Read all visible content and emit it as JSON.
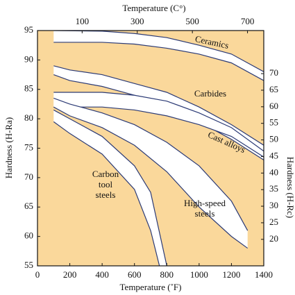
{
  "chart_data": {
    "type": "band",
    "x_label": "Temperature (˚F)",
    "x2_label": "Temperature (C°)",
    "y_label": "Hardness (H-Ra)",
    "y2_label": "Hardness (H-Rc)",
    "xlim": [
      0,
      1400
    ],
    "xticks": [
      0,
      200,
      400,
      600,
      800,
      1000,
      1200,
      1400
    ],
    "x2lim": [
      -62,
      759
    ],
    "x2ticks": [
      100,
      300,
      500,
      700
    ],
    "ylim": [
      55,
      95
    ],
    "yticks": [
      55,
      60,
      65,
      70,
      75,
      80,
      85,
      90,
      95
    ],
    "y2lim": [
      12,
      83
    ],
    "y2ticks": [
      20,
      25,
      30,
      35,
      40,
      45,
      50,
      55,
      60,
      65,
      70
    ],
    "color": "#2b3a75",
    "fill": "#ffffff",
    "background": "#fad89b",
    "bands": [
      {
        "name": "Ceramics",
        "x": [
          100,
          400,
          600,
          800,
          1000,
          1200,
          1400
        ],
        "upper": [
          95,
          94.9,
          94.5,
          93.8,
          92.5,
          91,
          88
        ],
        "lower": [
          93,
          93,
          92.7,
          92,
          91,
          89.5,
          86.5
        ]
      },
      {
        "name": "Carbides",
        "x": [
          100,
          200,
          400,
          600,
          800,
          1000,
          1200,
          1400
        ],
        "upper": [
          89,
          88.3,
          87.5,
          86,
          84.5,
          82,
          79,
          75.5
        ],
        "lower": [
          87.5,
          86.5,
          85.5,
          84,
          82,
          79.5,
          76.5,
          73
        ]
      },
      {
        "name": "Cast alloys",
        "x": [
          100,
          400,
          600,
          800,
          1000,
          1200,
          1400
        ],
        "upper": [
          84.5,
          84.5,
          84,
          83,
          81,
          78.5,
          74.5
        ],
        "lower": [
          82,
          82,
          81.5,
          80.5,
          79,
          77,
          73.5
        ]
      },
      {
        "name": "High-speed steels",
        "x": [
          100,
          200,
          400,
          600,
          800,
          1000,
          1200,
          1300
        ],
        "upper": [
          83.5,
          82.5,
          81,
          79,
          76,
          72,
          66,
          61
        ],
        "lower": [
          82,
          80.5,
          78.5,
          75.5,
          71,
          65,
          60,
          58
        ]
      },
      {
        "name": "Carbon tool steels",
        "x": [
          100,
          200,
          400,
          600,
          700,
          800
        ],
        "upper": [
          81.5,
          80,
          77,
          72,
          67.5,
          55
        ],
        "lower": [
          79.5,
          77.5,
          74,
          68,
          61,
          50
        ]
      }
    ]
  }
}
